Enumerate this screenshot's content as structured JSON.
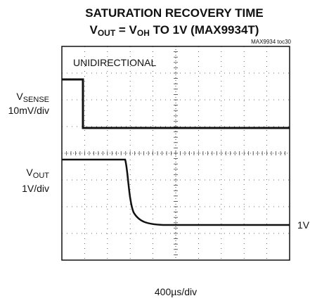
{
  "header": {
    "title_line1": "SATURATION RECOVERY TIME",
    "title_line2": [
      "V",
      "OUT",
      " = V",
      "OH",
      " TO 1V (MAX9934T)"
    ],
    "figure_id": "MAX9934 toc30"
  },
  "screen": {
    "mode": "UNIDIRECTIONAL",
    "time_scale": "400µs/div",
    "level_marker": "1V"
  },
  "channels": [
    {
      "name": [
        "V",
        "SENSE"
      ],
      "scale": "10mV/div"
    },
    {
      "name": [
        "V",
        "OUT"
      ],
      "scale": "1V/div"
    }
  ]
}
